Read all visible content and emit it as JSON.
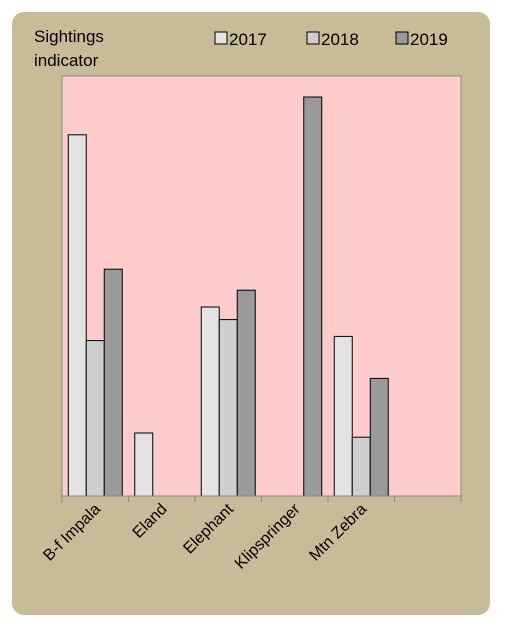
{
  "chart_data": {
    "type": "bar",
    "ylabel": "Sightings indicator",
    "ylabel_lines": [
      "Sightings",
      "indicator"
    ],
    "categories": [
      "B-f Impala",
      "Eland",
      "Elephant",
      "Klipspringer",
      "Mtn Zebra"
    ],
    "series": [
      {
        "name": "2017",
        "color": "#e3e3e3",
        "values": [
          0.86,
          0.15,
          0.45,
          0,
          0.38
        ]
      },
      {
        "name": "2018",
        "color": "#cfcfcf",
        "values": [
          0.37,
          0,
          0.42,
          0,
          0.14
        ]
      },
      {
        "name": "2019",
        "color": "#9a9a9a",
        "values": [
          0.54,
          0,
          0.49,
          0.95,
          0.28
        ]
      }
    ],
    "ylim": [
      0,
      1
    ],
    "plot_background": "#ffcccc",
    "frame_background": "#c8bb98",
    "legend_position": "top-right",
    "grid": false
  }
}
